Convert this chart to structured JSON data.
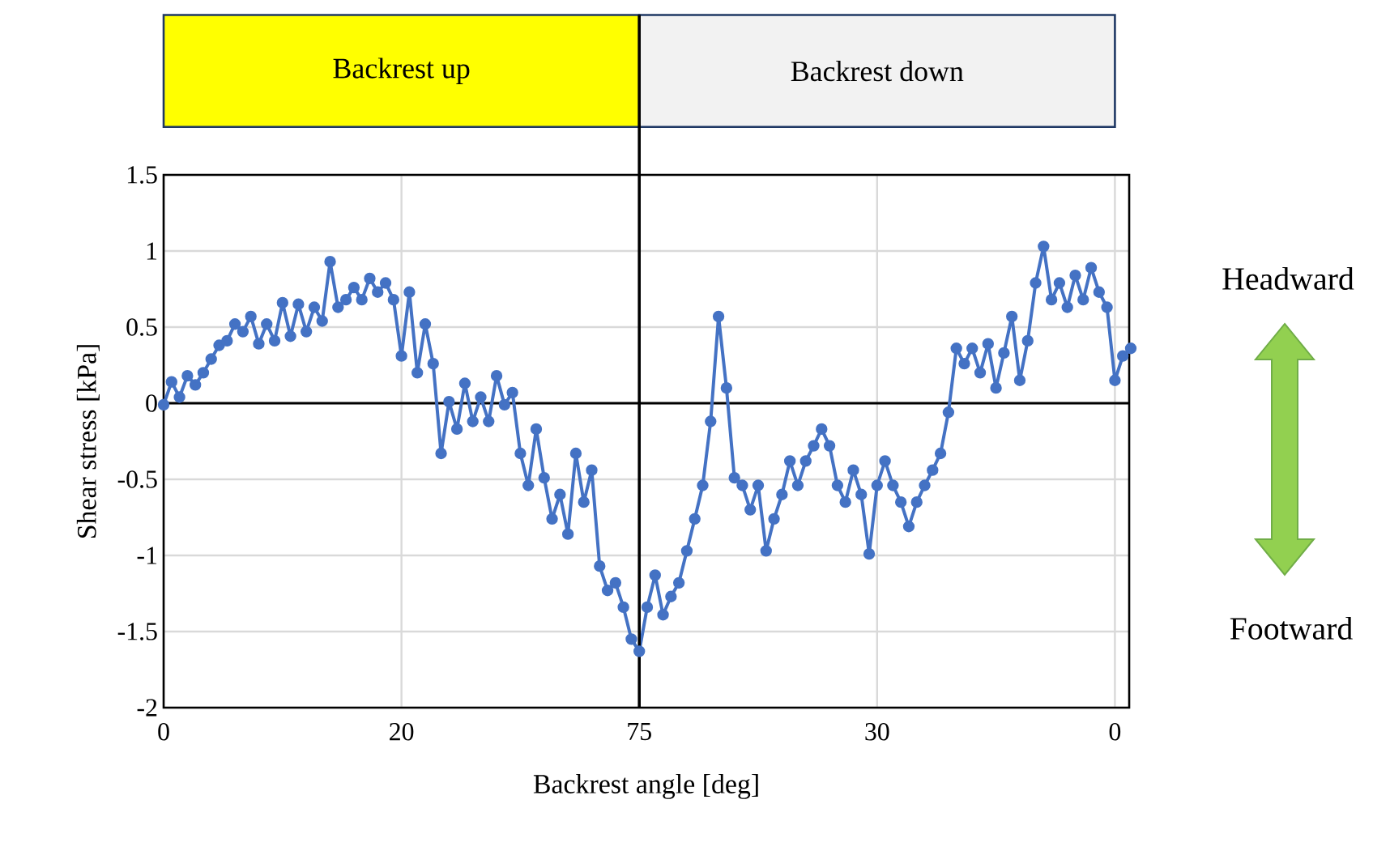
{
  "chart_data": {
    "type": "line",
    "xlabel": "Backrest angle [deg]",
    "ylabel": "Shear stress [kPa]",
    "categories": [
      "0",
      null,
      null,
      null,
      null,
      null,
      null,
      null,
      null,
      null,
      null,
      null,
      null,
      null,
      null,
      null,
      null,
      null,
      null,
      null,
      null,
      null,
      null,
      null,
      null,
      null,
      null,
      null,
      null,
      null,
      "20",
      null,
      null,
      null,
      null,
      null,
      null,
      null,
      null,
      null,
      null,
      null,
      null,
      null,
      null,
      null,
      null,
      null,
      null,
      null,
      null,
      null,
      null,
      null,
      null,
      null,
      null,
      null,
      null,
      null,
      "75",
      null,
      null,
      null,
      null,
      null,
      null,
      null,
      null,
      null,
      null,
      null,
      null,
      null,
      null,
      null,
      null,
      null,
      null,
      null,
      null,
      null,
      null,
      null,
      null,
      null,
      null,
      null,
      null,
      null,
      "30",
      null,
      null,
      null,
      null,
      null,
      null,
      null,
      null,
      null,
      null,
      null,
      null,
      null,
      null,
      null,
      null,
      null,
      null,
      null,
      null,
      null,
      null,
      null,
      null,
      null,
      null,
      null,
      null,
      null,
      "0",
      null,
      null
    ],
    "ylim": [
      -2,
      1.5
    ],
    "yticks": [
      -2,
      -1.5,
      -1,
      -0.5,
      0,
      0.5,
      1,
      1.5
    ],
    "grid": true,
    "marker": "circle",
    "line_style": "solid",
    "series": [
      {
        "color": "#4472c4",
        "values": [
          -0.01,
          0.14,
          0.04,
          0.18,
          0.12,
          0.2,
          0.29,
          0.38,
          0.41,
          0.52,
          0.47,
          0.57,
          0.39,
          0.52,
          0.41,
          0.66,
          0.44,
          0.65,
          0.47,
          0.63,
          0.54,
          0.93,
          0.63,
          0.68,
          0.76,
          0.68,
          0.82,
          0.73,
          0.79,
          0.68,
          0.31,
          0.73,
          0.2,
          0.52,
          0.26,
          -0.33,
          0.01,
          -0.17,
          0.13,
          -0.12,
          0.04,
          -0.12,
          0.18,
          -0.01,
          0.07,
          -0.33,
          -0.54,
          -0.17,
          -0.49,
          -0.76,
          -0.6,
          -0.86,
          -0.33,
          -0.65,
          -0.44,
          -1.07,
          -1.23,
          -1.18,
          -1.34,
          -1.55,
          -1.63,
          -1.34,
          -1.13,
          -1.39,
          -1.27,
          -1.18,
          -0.97,
          -0.76,
          -0.54,
          -0.12,
          0.57,
          0.1,
          -0.49,
          -0.54,
          -0.7,
          -0.54,
          -0.97,
          -0.76,
          -0.6,
          -0.38,
          -0.54,
          -0.38,
          -0.28,
          -0.17,
          -0.28,
          -0.54,
          -0.65,
          -0.44,
          -0.6,
          -0.99,
          -0.54,
          -0.38,
          -0.54,
          -0.65,
          -0.81,
          -0.65,
          -0.54,
          -0.44,
          -0.33,
          -0.06,
          0.36,
          0.26,
          0.36,
          0.2,
          0.39,
          0.1,
          0.33,
          0.57,
          0.15,
          0.41,
          0.79,
          1.03,
          0.68,
          0.79,
          0.63,
          0.84,
          0.68,
          0.89,
          0.73,
          0.63,
          0.15,
          0.31,
          0.36
        ]
      }
    ],
    "ref_lines": [
      {
        "axis": "x",
        "value": "75",
        "color": "#000000"
      }
    ],
    "annotations": [
      "Backrest up",
      "Backrest down",
      "Headward",
      "Footward"
    ]
  }
}
